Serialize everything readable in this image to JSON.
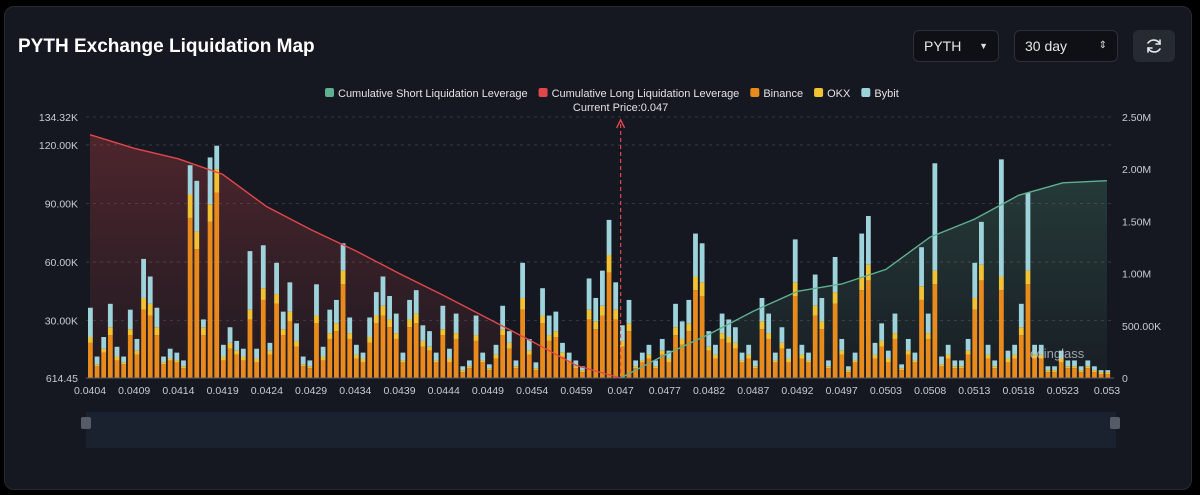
{
  "header": {
    "title": "PYTH Exchange Liquidation Map",
    "symbol_select": "PYTH",
    "range_select": "30 day"
  },
  "colors": {
    "short_line": "#5fb08f",
    "long_line": "#e0474c",
    "binance": "#e98a1c",
    "okx": "#f2c232",
    "bybit": "#9fd3dc",
    "current_price_line": "#e0474c"
  },
  "icons": {
    "refresh": "refresh-icon",
    "dropdown": "chevron-down-icon",
    "spinner": "up-down-icon"
  },
  "chart_data": {
    "type": "bar",
    "title": "PYTH Exchange Liquidation Map",
    "legend_position": "top-center",
    "legend": [
      "Cumulative Short Liquidation Leverage",
      "Cumulative Long Liquidation Leverage",
      "Binance",
      "OKX",
      "Bybit"
    ],
    "current_price_label": "Current Price:0.047",
    "current_price": 0.047,
    "x_tick_labels": [
      "0.0404",
      "0.0409",
      "0.0414",
      "0.0419",
      "0.0424",
      "0.0429",
      "0.0434",
      "0.0439",
      "0.0444",
      "0.0449",
      "0.0454",
      "0.0459",
      "0.047",
      "0.0477",
      "0.0482",
      "0.0487",
      "0.0492",
      "0.0497",
      "0.0503",
      "0.0508",
      "0.0513",
      "0.0518",
      "0.0523",
      "0.053"
    ],
    "y_left_tick_labels": [
      "614.45",
      "30.00K",
      "60.00K",
      "90.00K",
      "120.00K",
      "134.32K"
    ],
    "y_left_ticks": [
      614.45,
      30000,
      60000,
      90000,
      120000,
      134320
    ],
    "y_left_range": [
      614.45,
      134320
    ],
    "y_right_tick_labels": [
      "0",
      "500.00K",
      "1.00M",
      "1.50M",
      "2.00M",
      "2.50M"
    ],
    "y_right_ticks": [
      0,
      500000,
      1000000,
      1500000,
      2000000,
      2500000
    ],
    "y_right_range": [
      0,
      2500000
    ],
    "grid": true,
    "watermark": "coinglass",
    "bar_series": [
      {
        "name": "Binance",
        "values": [
          18000,
          6000,
          13000,
          22000,
          9000,
          7000,
          22000,
          12000,
          35000,
          32000,
          22000,
          7000,
          9000,
          8000,
          5000,
          82000,
          66000,
          22000,
          80000,
          95000,
          9000,
          15000,
          12000,
          9000,
          30000,
          8000,
          40000,
          12000,
          38000,
          22000,
          29000,
          16000,
          6000,
          5000,
          28000,
          9000,
          20000,
          24000,
          48000,
          20000,
          10000,
          8000,
          18000,
          28000,
          32000,
          26000,
          20000,
          8000,
          26000,
          28000,
          16000,
          14000,
          8000,
          22000,
          8000,
          20000,
          3000,
          5000,
          19000,
          8000,
          4000,
          10000,
          22000,
          15000,
          5000,
          35000,
          12000,
          4000,
          28000,
          19000,
          21000,
          11000,
          8000,
          5000,
          3000,
          30000,
          25000,
          32000,
          54000,
          30000,
          16000,
          24000,
          5000,
          8000,
          10000,
          5000,
          12000,
          8000,
          22000,
          17000,
          24000,
          45000,
          42000,
          14000,
          10000,
          20000,
          18000,
          15000,
          8000,
          10000,
          5000,
          25000,
          20000,
          8000,
          15000,
          8000,
          42000,
          10000,
          8000,
          32000,
          25000,
          5000,
          38000,
          12000,
          3000,
          8000,
          45000,
          50000,
          10000,
          16000,
          8000,
          20000,
          4000,
          12000,
          8000,
          40000,
          20000,
          48000,
          6000,
          10000,
          5000,
          5000,
          12000,
          35000,
          50000,
          10000,
          5000,
          45000,
          8000,
          10000,
          22000,
          48000,
          10000,
          10000,
          3000,
          3000,
          8000,
          5000,
          5000,
          3000,
          5000,
          3000,
          2000,
          2000
        ]
      },
      {
        "name": "OKX",
        "values": [
          3000,
          1000,
          2000,
          4000,
          2000,
          1000,
          3000,
          2000,
          6000,
          6000,
          4000,
          1000,
          1000,
          1000,
          1000,
          12000,
          9000,
          4000,
          9000,
          12000,
          2000,
          3000,
          2000,
          2000,
          5000,
          2000,
          6000,
          2000,
          5000,
          3000,
          5000,
          3000,
          1000,
          1000,
          4000,
          2000,
          3000,
          4000,
          7000,
          3000,
          2000,
          2000,
          3000,
          4000,
          5000,
          4000,
          3000,
          1000,
          4000,
          5000,
          3000,
          2000,
          1000,
          3000,
          2000,
          3000,
          1000,
          1000,
          3000,
          1000,
          1000,
          2000,
          3000,
          3000,
          1000,
          6000,
          2000,
          1000,
          4000,
          3000,
          3000,
          2000,
          1000,
          1000,
          1000,
          5000,
          4000,
          5000,
          9000,
          5000,
          3000,
          4000,
          1000,
          1000,
          2000,
          1000,
          2000,
          2000,
          4000,
          3000,
          4000,
          7000,
          7000,
          2000,
          2000,
          3000,
          3000,
          3000,
          1000,
          2000,
          1000,
          4000,
          3000,
          1000,
          3000,
          2000,
          7000,
          2000,
          1000,
          5000,
          4000,
          1000,
          6000,
          2000,
          1000,
          1000,
          7000,
          8000,
          2000,
          3000,
          2000,
          3000,
          1000,
          2000,
          1000,
          7000,
          3000,
          7000,
          1000,
          2000,
          1000,
          1000,
          2000,
          6000,
          8000,
          2000,
          1000,
          7000,
          2000,
          2000,
          4000,
          7000,
          2000,
          2000,
          1000,
          1000,
          2000,
          1000,
          1000,
          1000,
          1000,
          1000,
          1000,
          1000
        ]
      },
      {
        "name": "Bybit",
        "values": [
          15000,
          4000,
          6000,
          12000,
          5000,
          3000,
          10000,
          6000,
          20000,
          14000,
          10000,
          3000,
          5000,
          4000,
          3000,
          15000,
          26000,
          4000,
          24000,
          12000,
          6000,
          8000,
          5000,
          4000,
          30000,
          5000,
          22000,
          4000,
          16000,
          9000,
          15000,
          9000,
          4000,
          3000,
          16000,
          5000,
          12000,
          12000,
          14000,
          8000,
          5000,
          3000,
          10000,
          12000,
          15000,
          12000,
          10000,
          4000,
          10000,
          12000,
          8000,
          8000,
          4000,
          12000,
          5000,
          10000,
          2000,
          3000,
          10000,
          4000,
          2000,
          5000,
          12000,
          6000,
          3000,
          18000,
          6000,
          3000,
          14000,
          10000,
          10000,
          5000,
          4000,
          3000,
          2000,
          16000,
          12000,
          18000,
          18000,
          14000,
          8000,
          12000,
          3000,
          4000,
          5000,
          3000,
          6000,
          4000,
          12000,
          9000,
          12000,
          22000,
          20000,
          8000,
          5000,
          10000,
          9000,
          8000,
          4000,
          5000,
          3000,
          12000,
          10000,
          4000,
          8000,
          5000,
          22000,
          5000,
          4000,
          16000,
          12000,
          3000,
          18000,
          6000,
          2000,
          4000,
          22000,
          25000,
          6000,
          9000,
          4000,
          10000,
          2000,
          6000,
          4000,
          20000,
          10000,
          55000,
          4000,
          5000,
          3000,
          3000,
          6000,
          18000,
          22000,
          5000,
          3000,
          60000,
          4000,
          5000,
          12000,
          40000,
          5000,
          5000,
          2000,
          2000,
          4000,
          3000,
          3000,
          2000,
          3000,
          2000,
          1000,
          1000
        ]
      }
    ],
    "series": [
      {
        "name": "Cumulative Long Liquidation Leverage",
        "x": [
          0.0404,
          0.0409,
          0.0414,
          0.0419,
          0.0424,
          0.0429,
          0.0434,
          0.0439,
          0.0444,
          0.0449,
          0.0454,
          0.0459,
          0.047
        ],
        "values": [
          2330000,
          2200000,
          2100000,
          1950000,
          1640000,
          1420000,
          1220000,
          1000000,
          790000,
          570000,
          350000,
          120000,
          0
        ]
      },
      {
        "name": "Cumulative Short Liquidation Leverage",
        "x": [
          0.047,
          0.0477,
          0.0482,
          0.0487,
          0.0492,
          0.0497,
          0.0503,
          0.0508,
          0.0513,
          0.0518,
          0.0523,
          0.053
        ],
        "values": [
          0,
          220000,
          420000,
          640000,
          830000,
          900000,
          1040000,
          1350000,
          1520000,
          1750000,
          1870000,
          1890000
        ]
      }
    ]
  }
}
